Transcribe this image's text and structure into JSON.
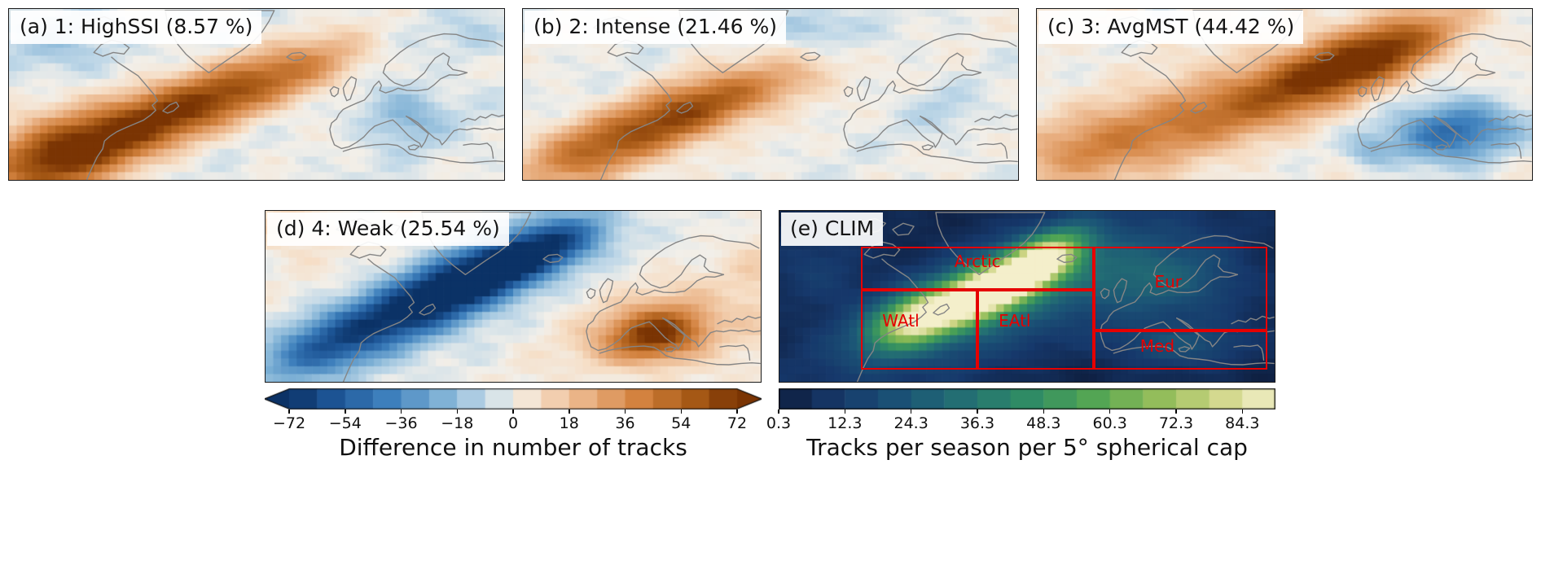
{
  "figure": {
    "background": "#ffffff",
    "coastline_color": "#858585",
    "panel_border_color": "#1a1a1a",
    "region_box_color": "#e60000"
  },
  "chart_data": [
    {
      "type": "heatmap",
      "panel": "a",
      "title": "(a) 1: HighSSI (8.57 %)",
      "cluster_number": 1,
      "cluster_name": "HighSSI",
      "frequency_percent": 8.57,
      "scale": "difference",
      "description": "Positive (brown) track-count anomaly band along the North Atlantic storm track from the US east coast toward NW Europe; weak negative (blue) patches over Europe and the subpolar north",
      "base": -2,
      "noise": 5,
      "blobs": [
        {
          "u": 0.09,
          "v": 0.86,
          "sx": 0.3,
          "sy": 0.15,
          "rot": -18,
          "amp": 66
        },
        {
          "u": 0.27,
          "v": 0.67,
          "sx": 0.34,
          "sy": 0.13,
          "rot": -21,
          "amp": 56
        },
        {
          "u": 0.45,
          "v": 0.49,
          "sx": 0.32,
          "sy": 0.12,
          "rot": -21,
          "amp": 44
        },
        {
          "u": 0.61,
          "v": 0.34,
          "sx": 0.26,
          "sy": 0.11,
          "rot": -18,
          "amp": 26
        },
        {
          "u": 0.8,
          "v": 0.62,
          "sx": 0.17,
          "sy": 0.12,
          "rot": 0,
          "amp": -20
        },
        {
          "u": 0.12,
          "v": 0.22,
          "sx": 0.24,
          "sy": 0.13,
          "rot": 0,
          "amp": -13
        },
        {
          "u": 0.94,
          "v": 0.16,
          "sx": 0.14,
          "sy": 0.09,
          "rot": 0,
          "amp": -9
        }
      ]
    },
    {
      "type": "heatmap",
      "panel": "b",
      "title": "(b) 2: Intense (21.46 %)",
      "cluster_number": 2,
      "cluster_name": "Intense",
      "frequency_percent": 21.46,
      "scale": "difference",
      "description": "Moderate positive anomaly band over the western/central North Atlantic, peak off Newfoundland; weak negatives to the north",
      "base": -1,
      "noise": 5,
      "blobs": [
        {
          "u": 0.12,
          "v": 0.85,
          "sx": 0.27,
          "sy": 0.13,
          "rot": -19,
          "amp": 40
        },
        {
          "u": 0.3,
          "v": 0.64,
          "sx": 0.3,
          "sy": 0.12,
          "rot": -22,
          "amp": 58
        },
        {
          "u": 0.45,
          "v": 0.5,
          "sx": 0.25,
          "sy": 0.1,
          "rot": -20,
          "amp": 28
        },
        {
          "u": 0.56,
          "v": 0.4,
          "sx": 0.2,
          "sy": 0.09,
          "rot": -18,
          "amp": 12
        },
        {
          "u": 0.58,
          "v": 0.1,
          "sx": 0.2,
          "sy": 0.08,
          "rot": 0,
          "amp": -15
        },
        {
          "u": 0.85,
          "v": 0.6,
          "sx": 0.15,
          "sy": 0.1,
          "rot": 0,
          "amp": -8
        }
      ]
    },
    {
      "type": "heatmap",
      "panel": "c",
      "title": "(c) 3: AvgMST (44.42 %)",
      "cluster_number": 3,
      "cluster_name": "AvgMST",
      "frequency_percent": 44.42,
      "scale": "difference",
      "description": "Broad positive anomaly band tilted toward the Nordic Seas with maximum near Iceland/Norwegian Sea; strong negative anomaly over the Mediterranean/Black Sea",
      "base": 2,
      "noise": 5,
      "blobs": [
        {
          "u": 0.1,
          "v": 0.82,
          "sx": 0.3,
          "sy": 0.14,
          "rot": -17,
          "amp": 30
        },
        {
          "u": 0.33,
          "v": 0.62,
          "sx": 0.4,
          "sy": 0.14,
          "rot": -21,
          "amp": 40
        },
        {
          "u": 0.57,
          "v": 0.38,
          "sx": 0.34,
          "sy": 0.13,
          "rot": -24,
          "amp": 56
        },
        {
          "u": 0.72,
          "v": 0.24,
          "sx": 0.28,
          "sy": 0.11,
          "rot": -24,
          "amp": 48
        },
        {
          "u": 0.84,
          "v": 0.72,
          "sx": 0.26,
          "sy": 0.12,
          "rot": -8,
          "amp": -52
        },
        {
          "u": 0.67,
          "v": 0.83,
          "sx": 0.1,
          "sy": 0.07,
          "rot": 0,
          "amp": -16
        }
      ]
    },
    {
      "type": "heatmap",
      "panel": "d",
      "title": "(d) 4: Weak (25.54 %)",
      "cluster_number": 4,
      "cluster_name": "Weak",
      "frequency_percent": 25.54,
      "scale": "difference",
      "description": "Strong negative (blue) anomaly band along the entire North Atlantic storm track; strong positive (brown) anomaly over the Mediterranean",
      "base": 0,
      "noise": 5,
      "blobs": [
        {
          "u": 0.12,
          "v": 0.8,
          "sx": 0.28,
          "sy": 0.13,
          "rot": -19,
          "amp": -44
        },
        {
          "u": 0.3,
          "v": 0.57,
          "sx": 0.33,
          "sy": 0.13,
          "rot": -22,
          "amp": -60
        },
        {
          "u": 0.46,
          "v": 0.35,
          "sx": 0.33,
          "sy": 0.12,
          "rot": -22,
          "amp": -68
        },
        {
          "u": 0.58,
          "v": 0.2,
          "sx": 0.26,
          "sy": 0.1,
          "rot": -19,
          "amp": -42
        },
        {
          "u": 0.79,
          "v": 0.73,
          "sx": 0.2,
          "sy": 0.1,
          "rot": -8,
          "amp": 62
        },
        {
          "u": 0.8,
          "v": 0.66,
          "sx": 0.38,
          "sy": 0.17,
          "rot": -10,
          "amp": 16
        },
        {
          "u": 0.05,
          "v": 0.1,
          "sx": 0.2,
          "sy": 0.12,
          "rot": 0,
          "amp": 12
        },
        {
          "u": 0.99,
          "v": 0.45,
          "sx": 0.1,
          "sy": 0.24,
          "rot": 0,
          "amp": 9
        }
      ]
    },
    {
      "type": "heatmap",
      "panel": "e",
      "title": "(e) CLIM",
      "cluster_name": "CLIM",
      "scale": "climatology",
      "description": "Climatological track density: bright band (up to ~90 tracks) along the North Atlantic storm track from the US east coast toward the Nordic Seas; red boxes mark the Arctic, Eur, WAtl, EAtl and Med regions",
      "base": 4,
      "noise": 2,
      "blobs": [
        {
          "u": 0.28,
          "v": 0.63,
          "sx": 0.2,
          "sy": 0.1,
          "rot": -22,
          "amp": 72
        },
        {
          "u": 0.42,
          "v": 0.47,
          "sx": 0.2,
          "sy": 0.1,
          "rot": -24,
          "amp": 84
        },
        {
          "u": 0.53,
          "v": 0.3,
          "sx": 0.18,
          "sy": 0.09,
          "rot": -28,
          "amp": 76
        },
        {
          "u": 0.45,
          "v": 0.5,
          "sx": 0.7,
          "sy": 0.21,
          "rot": -22,
          "amp": 26
        },
        {
          "u": 0.78,
          "v": 0.42,
          "sx": 0.33,
          "sy": 0.16,
          "rot": 0,
          "amp": 20
        },
        {
          "u": 0.8,
          "v": 0.78,
          "sx": 0.28,
          "sy": 0.09,
          "rot": 0,
          "amp": 16
        },
        {
          "u": 0.08,
          "v": 0.35,
          "sx": 0.2,
          "sy": 0.18,
          "rot": 0,
          "amp": 8
        }
      ],
      "regions": [
        {
          "label": "Arctic",
          "x": 0.165,
          "y": 0.21,
          "w": 0.47,
          "h": 0.25,
          "lx": 0.4,
          "ly": 0.295
        },
        {
          "label": "Eur",
          "x": 0.635,
          "y": 0.21,
          "w": 0.35,
          "h": 0.49,
          "lx": 0.785,
          "ly": 0.415
        },
        {
          "label": "WAtl",
          "x": 0.165,
          "y": 0.46,
          "w": 0.235,
          "h": 0.47,
          "lx": 0.245,
          "ly": 0.645
        },
        {
          "label": "EAtl",
          "x": 0.4,
          "y": 0.46,
          "w": 0.235,
          "h": 0.47,
          "lx": 0.475,
          "ly": 0.645
        },
        {
          "label": "Med",
          "x": 0.635,
          "y": 0.7,
          "w": 0.35,
          "h": 0.23,
          "lx": 0.763,
          "ly": 0.79
        }
      ]
    }
  ],
  "colorbars": [
    {
      "id": "difference",
      "label": "Difference in number of tracks",
      "range": [
        -72,
        72
      ],
      "extend": "both",
      "bins": 16,
      "ticks": [
        {
          "label": "−72",
          "value": -72
        },
        {
          "label": "−54",
          "value": -54
        },
        {
          "label": "−36",
          "value": -36
        },
        {
          "label": "−18",
          "value": -18
        },
        {
          "label": "0",
          "value": 0
        },
        {
          "label": "18",
          "value": 18
        },
        {
          "label": "36",
          "value": 36
        },
        {
          "label": "54",
          "value": 54
        },
        {
          "label": "72",
          "value": 72
        }
      ],
      "stops": [
        [
          0.0,
          "#0b3266"
        ],
        [
          0.1,
          "#1d5596"
        ],
        [
          0.22,
          "#3d7fbc"
        ],
        [
          0.34,
          "#7db0d5"
        ],
        [
          0.44,
          "#c2d9e8"
        ],
        [
          0.5,
          "#f2efe9"
        ],
        [
          0.56,
          "#f6ddc4"
        ],
        [
          0.66,
          "#eab285"
        ],
        [
          0.78,
          "#d3823f"
        ],
        [
          0.9,
          "#a85a16"
        ],
        [
          1.0,
          "#7a3403"
        ]
      ]
    },
    {
      "id": "climatology",
      "label": "Tracks per season per 5° spherical cap",
      "range": [
        0.3,
        90.3
      ],
      "extend": "neither",
      "bins": 15,
      "ticks": [
        {
          "label": "0.3",
          "value": 0.3
        },
        {
          "label": "12.3",
          "value": 12.3
        },
        {
          "label": "24.3",
          "value": 24.3
        },
        {
          "label": "36.3",
          "value": 36.3
        },
        {
          "label": "48.3",
          "value": 48.3
        },
        {
          "label": "60.3",
          "value": 60.3
        },
        {
          "label": "72.3",
          "value": 72.3
        },
        {
          "label": "84.3",
          "value": 84.3
        }
      ],
      "stops": [
        [
          0.0,
          "#0e1d3d"
        ],
        [
          0.12,
          "#16386b"
        ],
        [
          0.25,
          "#1b5376"
        ],
        [
          0.38,
          "#247173"
        ],
        [
          0.5,
          "#2f8b65"
        ],
        [
          0.62,
          "#4da354"
        ],
        [
          0.75,
          "#8aba55"
        ],
        [
          0.88,
          "#cdd483"
        ],
        [
          1.0,
          "#f4efcb"
        ]
      ]
    }
  ]
}
